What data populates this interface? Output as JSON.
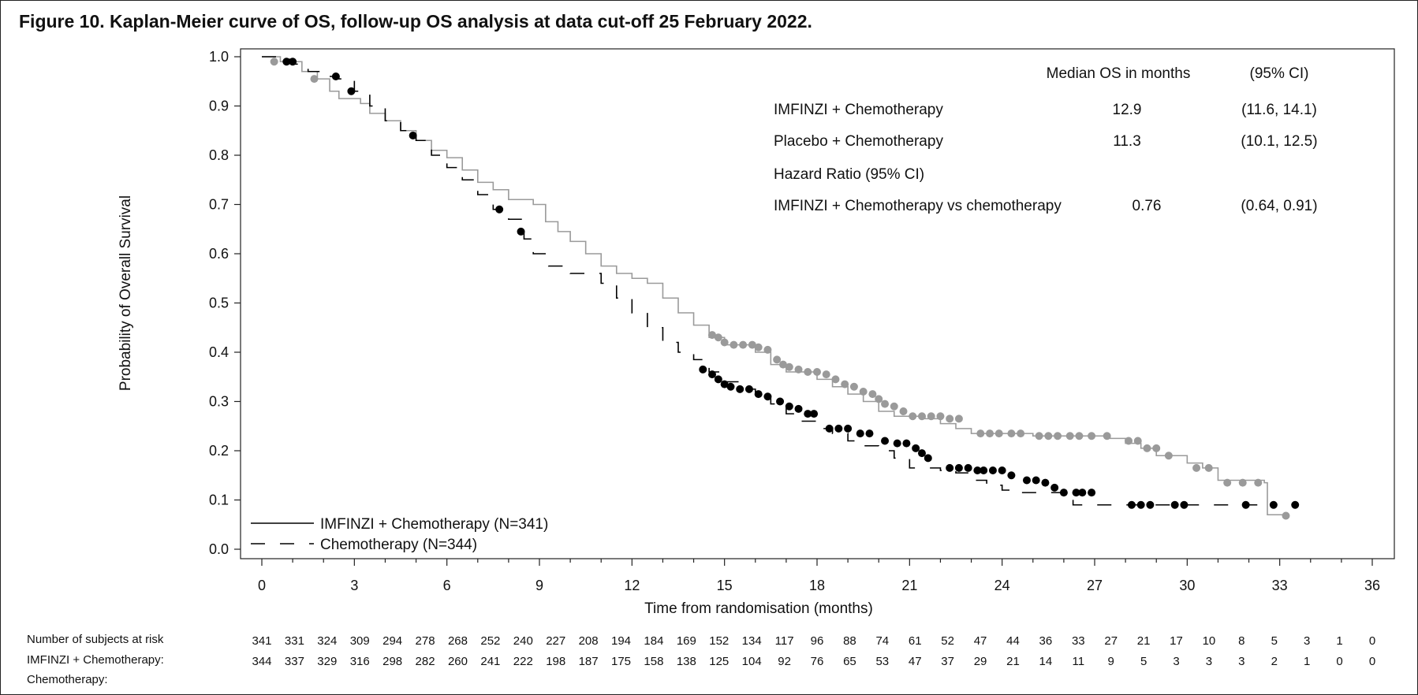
{
  "figure_title": "Figure 10. Kaplan-Meier curve of OS, follow-up OS analysis at data cut-off 25 February 2022.",
  "colors": {
    "imfinzi": "#9a9a9a",
    "chemo": "#000000"
  },
  "stats_table": {
    "header_median": "Median OS in months",
    "header_ci": "(95% CI)",
    "rows": [
      {
        "label": "IMFINZI + Chemotherapy",
        "value": "12.9",
        "ci": "(11.6, 14.1)"
      },
      {
        "label": "Placebo + Chemotherapy",
        "value": "11.3",
        "ci": "(10.1, 12.5)"
      },
      {
        "label": "Hazard Ratio (95% CI)",
        "value": "",
        "ci": ""
      },
      {
        "label": "IMFINZI + Chemotherapy vs chemotherapy",
        "value": "0.76",
        "ci": "(0.64, 0.91)"
      }
    ]
  },
  "risk_table": {
    "title": "Number of subjects at risk",
    "row1_label": "IMFINZI + Chemotherapy:",
    "row2_label": "Chemotherapy:",
    "times": [
      0,
      1,
      2,
      3,
      4,
      5,
      6,
      7,
      8,
      9,
      10,
      11,
      12,
      13,
      14,
      15,
      16,
      17,
      18,
      19,
      20,
      21,
      22,
      23,
      24,
      25,
      26,
      27,
      28,
      29,
      30,
      31,
      32,
      33,
      34
    ],
    "imfinzi": [
      341,
      331,
      324,
      309,
      294,
      278,
      268,
      252,
      240,
      227,
      208,
      194,
      184,
      169,
      152,
      134,
      117,
      96,
      88,
      74,
      61,
      52,
      47,
      44,
      36,
      33,
      27,
      21,
      17,
      10,
      8,
      5,
      3,
      1,
      0
    ],
    "chemo": [
      344,
      337,
      329,
      316,
      298,
      282,
      260,
      241,
      222,
      198,
      187,
      175,
      158,
      138,
      125,
      104,
      92,
      76,
      65,
      53,
      47,
      37,
      29,
      21,
      14,
      11,
      9,
      5,
      3,
      3,
      3,
      2,
      1,
      0,
      0
    ]
  },
  "chart_data": {
    "type": "line",
    "title": "",
    "xlabel": "Time from randomisation (months)",
    "ylabel": "Probability of Overall Survival",
    "xlim": [
      0,
      36
    ],
    "ylim": [
      0,
      1
    ],
    "xticks": [
      0,
      3,
      6,
      9,
      12,
      15,
      18,
      21,
      24,
      27,
      30,
      33,
      36
    ],
    "yticks": [
      "0.0",
      "0.1",
      "0.2",
      "0.3",
      "0.4",
      "0.5",
      "0.6",
      "0.7",
      "0.8",
      "0.9",
      "1.0"
    ],
    "legend": "bottom-left",
    "series": [
      {
        "name": "IMFINZI + Chemotherapy (N=341)",
        "style": "solid",
        "points": [
          [
            0,
            1.0
          ],
          [
            0.6,
            0.99
          ],
          [
            1.3,
            0.97
          ],
          [
            1.8,
            0.955
          ],
          [
            2.2,
            0.93
          ],
          [
            2.5,
            0.915
          ],
          [
            3.2,
            0.905
          ],
          [
            3.5,
            0.885
          ],
          [
            4.0,
            0.87
          ],
          [
            4.5,
            0.85
          ],
          [
            5.0,
            0.83
          ],
          [
            5.5,
            0.81
          ],
          [
            6.0,
            0.795
          ],
          [
            6.5,
            0.77
          ],
          [
            7.0,
            0.745
          ],
          [
            7.5,
            0.73
          ],
          [
            8.0,
            0.71
          ],
          [
            8.8,
            0.7
          ],
          [
            9.2,
            0.665
          ],
          [
            9.6,
            0.645
          ],
          [
            10.0,
            0.625
          ],
          [
            10.5,
            0.6
          ],
          [
            11.0,
            0.575
          ],
          [
            11.5,
            0.56
          ],
          [
            12.0,
            0.55
          ],
          [
            12.5,
            0.54
          ],
          [
            13.0,
            0.51
          ],
          [
            13.5,
            0.48
          ],
          [
            14.0,
            0.455
          ],
          [
            14.5,
            0.43
          ],
          [
            15.0,
            0.415
          ],
          [
            16.0,
            0.4
          ],
          [
            16.5,
            0.375
          ],
          [
            17.0,
            0.36
          ],
          [
            18.0,
            0.345
          ],
          [
            18.5,
            0.33
          ],
          [
            19.0,
            0.315
          ],
          [
            19.5,
            0.3
          ],
          [
            20.0,
            0.28
          ],
          [
            20.5,
            0.27
          ],
          [
            21.5,
            0.265
          ],
          [
            22.0,
            0.255
          ],
          [
            22.5,
            0.245
          ],
          [
            23.0,
            0.235
          ],
          [
            25.0,
            0.23
          ],
          [
            27.5,
            0.225
          ],
          [
            28.0,
            0.215
          ],
          [
            28.5,
            0.205
          ],
          [
            29.0,
            0.19
          ],
          [
            30.0,
            0.175
          ],
          [
            30.5,
            0.165
          ],
          [
            31.0,
            0.14
          ],
          [
            32.5,
            0.135
          ],
          [
            32.6,
            0.07
          ],
          [
            33.2,
            0.068
          ]
        ],
        "censored": [
          [
            0.4,
            0.99
          ],
          [
            1.7,
            0.955
          ],
          [
            14.6,
            0.435
          ],
          [
            14.8,
            0.43
          ],
          [
            15.0,
            0.42
          ],
          [
            15.3,
            0.415
          ],
          [
            15.6,
            0.415
          ],
          [
            15.9,
            0.415
          ],
          [
            16.1,
            0.41
          ],
          [
            16.4,
            0.405
          ],
          [
            16.7,
            0.385
          ],
          [
            16.9,
            0.375
          ],
          [
            17.1,
            0.37
          ],
          [
            17.4,
            0.365
          ],
          [
            17.7,
            0.36
          ],
          [
            18.0,
            0.36
          ],
          [
            18.3,
            0.355
          ],
          [
            18.6,
            0.345
          ],
          [
            18.9,
            0.335
          ],
          [
            19.2,
            0.33
          ],
          [
            19.5,
            0.32
          ],
          [
            19.8,
            0.315
          ],
          [
            20.0,
            0.305
          ],
          [
            20.2,
            0.295
          ],
          [
            20.5,
            0.29
          ],
          [
            20.8,
            0.28
          ],
          [
            21.1,
            0.27
          ],
          [
            21.4,
            0.27
          ],
          [
            21.7,
            0.27
          ],
          [
            22.0,
            0.27
          ],
          [
            22.3,
            0.265
          ],
          [
            22.6,
            0.265
          ],
          [
            23.3,
            0.235
          ],
          [
            23.6,
            0.235
          ],
          [
            23.9,
            0.235
          ],
          [
            24.3,
            0.235
          ],
          [
            24.6,
            0.235
          ],
          [
            25.2,
            0.23
          ],
          [
            25.5,
            0.23
          ],
          [
            25.8,
            0.23
          ],
          [
            26.2,
            0.23
          ],
          [
            26.5,
            0.23
          ],
          [
            26.9,
            0.23
          ],
          [
            27.4,
            0.23
          ],
          [
            28.1,
            0.22
          ],
          [
            28.4,
            0.22
          ],
          [
            28.7,
            0.205
          ],
          [
            29.0,
            0.205
          ],
          [
            29.4,
            0.19
          ],
          [
            30.3,
            0.165
          ],
          [
            30.7,
            0.165
          ],
          [
            31.3,
            0.135
          ],
          [
            31.8,
            0.135
          ],
          [
            32.3,
            0.135
          ],
          [
            33.2,
            0.068
          ]
        ]
      },
      {
        "name": "Chemotherapy (N=344)",
        "style": "dashed",
        "points": [
          [
            0,
            1.0
          ],
          [
            0.5,
            0.995
          ],
          [
            1.0,
            0.985
          ],
          [
            1.5,
            0.97
          ],
          [
            2.0,
            0.96
          ],
          [
            2.5,
            0.955
          ],
          [
            3.0,
            0.93
          ],
          [
            3.5,
            0.9
          ],
          [
            4.0,
            0.87
          ],
          [
            4.5,
            0.85
          ],
          [
            5.0,
            0.83
          ],
          [
            5.5,
            0.8
          ],
          [
            6.0,
            0.775
          ],
          [
            6.5,
            0.75
          ],
          [
            7.0,
            0.72
          ],
          [
            7.5,
            0.69
          ],
          [
            8.0,
            0.67
          ],
          [
            8.5,
            0.63
          ],
          [
            8.8,
            0.6
          ],
          [
            9.3,
            0.575
          ],
          [
            10.0,
            0.56
          ],
          [
            11.0,
            0.54
          ],
          [
            11.5,
            0.51
          ],
          [
            12.0,
            0.48
          ],
          [
            12.5,
            0.45
          ],
          [
            13.0,
            0.42
          ],
          [
            13.5,
            0.4
          ],
          [
            14.0,
            0.385
          ],
          [
            14.5,
            0.36
          ],
          [
            15.0,
            0.34
          ],
          [
            15.5,
            0.325
          ],
          [
            16.0,
            0.31
          ],
          [
            16.5,
            0.295
          ],
          [
            17.0,
            0.275
          ],
          [
            17.5,
            0.26
          ],
          [
            18.0,
            0.245
          ],
          [
            18.5,
            0.235
          ],
          [
            19.0,
            0.22
          ],
          [
            19.5,
            0.21
          ],
          [
            20.0,
            0.2
          ],
          [
            20.5,
            0.185
          ],
          [
            21.0,
            0.165
          ],
          [
            22.0,
            0.16
          ],
          [
            22.5,
            0.155
          ],
          [
            23.0,
            0.14
          ],
          [
            23.5,
            0.13
          ],
          [
            24.0,
            0.12
          ],
          [
            24.5,
            0.115
          ],
          [
            25.5,
            0.115
          ],
          [
            26.0,
            0.11
          ],
          [
            26.3,
            0.09
          ],
          [
            32.4,
            0.09
          ],
          [
            32.6,
            0.09
          ]
        ],
        "censored": [
          [
            0.8,
            0.99
          ],
          [
            1.0,
            0.99
          ],
          [
            2.4,
            0.96
          ],
          [
            2.9,
            0.93
          ],
          [
            4.9,
            0.84
          ],
          [
            7.7,
            0.69
          ],
          [
            8.4,
            0.645
          ],
          [
            14.3,
            0.365
          ],
          [
            14.6,
            0.355
          ],
          [
            14.8,
            0.345
          ],
          [
            15.0,
            0.335
          ],
          [
            15.2,
            0.33
          ],
          [
            15.5,
            0.325
          ],
          [
            15.8,
            0.325
          ],
          [
            16.1,
            0.315
          ],
          [
            16.4,
            0.31
          ],
          [
            16.8,
            0.3
          ],
          [
            17.1,
            0.29
          ],
          [
            17.4,
            0.285
          ],
          [
            17.7,
            0.275
          ],
          [
            17.9,
            0.275
          ],
          [
            18.4,
            0.245
          ],
          [
            18.7,
            0.245
          ],
          [
            19.0,
            0.245
          ],
          [
            19.4,
            0.235
          ],
          [
            19.7,
            0.235
          ],
          [
            20.2,
            0.22
          ],
          [
            20.6,
            0.215
          ],
          [
            20.9,
            0.215
          ],
          [
            21.2,
            0.205
          ],
          [
            21.4,
            0.195
          ],
          [
            21.6,
            0.185
          ],
          [
            22.3,
            0.165
          ],
          [
            22.6,
            0.165
          ],
          [
            22.9,
            0.165
          ],
          [
            23.2,
            0.16
          ],
          [
            23.4,
            0.16
          ],
          [
            23.7,
            0.16
          ],
          [
            24.0,
            0.16
          ],
          [
            24.3,
            0.15
          ],
          [
            24.8,
            0.14
          ],
          [
            25.1,
            0.14
          ],
          [
            25.4,
            0.135
          ],
          [
            25.7,
            0.125
          ],
          [
            26.0,
            0.115
          ],
          [
            26.4,
            0.115
          ],
          [
            26.6,
            0.115
          ],
          [
            26.9,
            0.115
          ],
          [
            28.2,
            0.09
          ],
          [
            28.5,
            0.09
          ],
          [
            28.8,
            0.09
          ],
          [
            29.6,
            0.09
          ],
          [
            29.9,
            0.09
          ],
          [
            31.9,
            0.09
          ],
          [
            32.8,
            0.09
          ],
          [
            33.5,
            0.09
          ]
        ]
      }
    ]
  }
}
